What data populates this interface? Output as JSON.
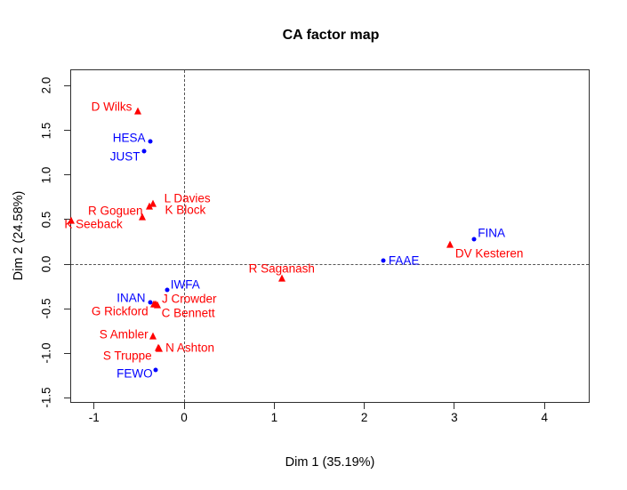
{
  "chart_data": {
    "type": "scatter",
    "title": "CA factor map",
    "xlabel": "Dim 1 (35.19%)",
    "ylabel": "Dim 2 (24.58%)",
    "xlim": [
      -1.264,
      4.501
    ],
    "ylim": [
      -1.555,
      2.184
    ],
    "grid": false,
    "legend": "none",
    "reference_lines": {
      "vline_x": 0,
      "hline_y": 0,
      "style": "dashed",
      "color": "#555555"
    },
    "x_ticks": {
      "values": [
        -1,
        0,
        1,
        2,
        3,
        4
      ],
      "labels": [
        "-1",
        "0",
        "1",
        "2",
        "3",
        "4"
      ]
    },
    "y_ticks": {
      "values": [
        -1.5,
        -1.0,
        -0.5,
        0.0,
        0.5,
        1.0,
        1.5,
        2.0
      ],
      "labels": [
        "-1.5",
        "-1.0",
        "-0.5",
        "0.0",
        "0.5",
        "1.0",
        "1.5",
        "2.0"
      ]
    },
    "series": [
      {
        "name": "rows",
        "marker": "triangle",
        "color": "#FF0000",
        "points": [
          {
            "label": "D Wilks",
            "x": -0.51,
            "y": 1.72,
            "anchor": "end",
            "dx": -7,
            "dy": -5
          },
          {
            "label": "L Davies",
            "x": -0.35,
            "y": 0.68,
            "anchor": "start",
            "dx": 13,
            "dy": -6
          },
          {
            "label": "K Block",
            "x": -0.46,
            "y": 0.53,
            "anchor": "start",
            "dx": 25,
            "dy": -8
          },
          {
            "label": "R Goguen",
            "x": -0.39,
            "y": 0.645,
            "anchor": "end",
            "dx": -7,
            "dy": 5
          },
          {
            "label": "K Seeback",
            "x": -1.25,
            "y": 0.49,
            "anchor": "start",
            "dx": -8,
            "dy": 4
          },
          {
            "label": "J Crowder",
            "x": -0.316,
            "y": -0.446,
            "anchor": "start",
            "dx": 7,
            "dy": -6
          },
          {
            "label": "G Rickford",
            "x": -0.34,
            "y": -0.45,
            "anchor": "end",
            "dx": -6,
            "dy": 8
          },
          {
            "label": "C Bennett",
            "x": -0.3,
            "y": -0.455,
            "anchor": "start",
            "dx": 5,
            "dy": 9
          },
          {
            "label": "S Ambler",
            "x": -0.35,
            "y": -0.81,
            "anchor": "end",
            "dx": -5,
            "dy": -2
          },
          {
            "label": "S Truppe",
            "x": -0.29,
            "y": -0.94,
            "anchor": "end",
            "dx": -7,
            "dy": 9
          },
          {
            "label": "N Ashton",
            "x": -0.275,
            "y": -0.945,
            "anchor": "start",
            "dx": 7,
            "dy": -1
          },
          {
            "label": "R Saganash",
            "x": 1.083,
            "y": -0.163,
            "anchor": "middle",
            "dx": 0,
            "dy": -11
          },
          {
            "label": "DV Kesteren",
            "x": 2.95,
            "y": 0.22,
            "anchor": "start",
            "dx": 6,
            "dy": 10
          }
        ]
      },
      {
        "name": "columns",
        "marker": "circle",
        "color": "#0000FF",
        "points": [
          {
            "label": "HESA",
            "x": -0.38,
            "y": 1.38,
            "anchor": "end",
            "dx": -5,
            "dy": -4
          },
          {
            "label": "JUST",
            "x": -0.44,
            "y": 1.27,
            "anchor": "end",
            "dx": -5,
            "dy": 6
          },
          {
            "label": "IWFA",
            "x": -0.19,
            "y": -0.29,
            "anchor": "start",
            "dx": 4,
            "dy": -6
          },
          {
            "label": "INAN",
            "x": -0.38,
            "y": -0.43,
            "anchor": "end",
            "dx": -5,
            "dy": -5
          },
          {
            "label": "FEWO",
            "x": -0.32,
            "y": -1.19,
            "anchor": "end",
            "dx": -3,
            "dy": 4
          },
          {
            "label": "FAAE",
            "x": 2.21,
            "y": 0.04,
            "anchor": "start",
            "dx": 6,
            "dy": 0
          },
          {
            "label": "FINA",
            "x": 3.22,
            "y": 0.28,
            "anchor": "start",
            "dx": 4,
            "dy": -7
          }
        ]
      }
    ]
  }
}
